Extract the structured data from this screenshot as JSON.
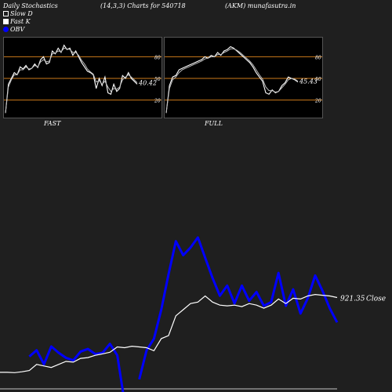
{
  "header": {
    "title": "Daily Stochastics",
    "params": "(14,3,3) Charts for 540718",
    "source": "(AKM) munafasutra.in"
  },
  "legend": [
    {
      "label": "Slow  D",
      "kind": "open-square"
    },
    {
      "label": "Fast  K",
      "kind": "filled-square"
    },
    {
      "label": "OBV",
      "kind": "blue-dot"
    }
  ],
  "colors": {
    "background": "#1f1f1f",
    "panel": "#000000",
    "level_line": "#cc7a1a",
    "obv": "#0000ff",
    "price": "#ffffff"
  },
  "chart_data": [
    {
      "type": "line",
      "title": "FAST",
      "ylim": [
        0,
        100
      ],
      "level_lines": [
        80,
        50,
        20
      ],
      "tick_labels": [
        "80",
        "50",
        "20"
      ],
      "last_value_label": "40.42",
      "series": [
        {
          "name": "Fast K",
          "values": [
            2,
            42,
            50,
            58,
            55,
            66,
            63,
            68,
            62,
            64,
            70,
            65,
            76,
            80,
            70,
            72,
            88,
            84,
            92,
            86,
            96,
            90,
            92,
            82,
            88,
            80,
            72,
            66,
            60,
            58,
            55,
            36,
            50,
            40,
            52,
            30,
            28,
            42,
            32,
            36,
            54,
            50,
            58,
            50,
            46,
            42
          ]
        },
        {
          "name": "Slow D",
          "values": [
            2,
            38,
            48,
            55,
            55,
            62,
            62,
            66,
            63,
            64,
            68,
            66,
            73,
            76,
            73,
            74,
            84,
            85,
            88,
            87,
            92,
            91,
            90,
            86,
            86,
            82,
            75,
            70,
            63,
            59,
            56,
            45,
            47,
            42,
            46,
            38,
            32,
            36,
            35,
            38,
            48,
            52,
            55,
            52,
            48,
            44
          ]
        }
      ]
    },
    {
      "type": "line",
      "title": "FULL",
      "ylim": [
        0,
        100
      ],
      "level_lines": [
        80,
        50,
        20
      ],
      "tick_labels": [
        "80",
        "50",
        "20"
      ],
      "last_value_label": "45.43",
      "series": [
        {
          "name": "Fast K",
          "values": [
            2,
            40,
            52,
            54,
            62,
            64,
            66,
            68,
            70,
            72,
            74,
            76,
            80,
            78,
            82,
            80,
            86,
            82,
            88,
            90,
            94,
            92,
            88,
            84,
            80,
            76,
            72,
            66,
            58,
            52,
            46,
            30,
            28,
            34,
            30,
            32,
            40,
            44,
            52,
            50,
            48,
            45
          ]
        },
        {
          "name": "Slow D",
          "values": [
            2,
            36,
            48,
            52,
            58,
            62,
            64,
            66,
            68,
            70,
            72,
            74,
            77,
            78,
            80,
            80,
            83,
            83,
            86,
            88,
            91,
            91,
            89,
            86,
            82,
            78,
            74,
            69,
            62,
            55,
            49,
            38,
            33,
            33,
            31,
            32,
            37,
            42,
            48,
            50,
            49,
            46
          ]
        }
      ]
    },
    {
      "type": "line",
      "title": "",
      "last_value_label": "921.35",
      "price_label": "Close",
      "series": [
        {
          "name": "Close",
          "values": [
            0.88,
            0.88,
            0.86,
            0.92,
            1.0,
            1.4,
            1.3,
            1.2,
            1.4,
            1.6,
            1.55,
            1.8,
            1.85,
            2.0,
            2.1,
            2.2,
            2.55,
            2.5,
            2.6,
            2.55,
            2.5,
            2.3,
            3.1,
            3.3,
            4.6,
            5.0,
            5.4,
            5.5,
            5.9,
            5.5,
            5.3,
            5.25,
            5.3,
            5.2,
            5.4,
            5.3,
            5.1,
            5.3,
            5.7,
            5.4,
            5.75,
            5.7,
            5.9,
            6.0,
            5.95,
            5.9,
            5.8
          ]
        },
        {
          "name": "OBV",
          "values": [
            null,
            null,
            null,
            null,
            -0.2,
            0.3,
            -0.8,
            0.6,
            0.1,
            -0.3,
            -0.5,
            0.2,
            0.4,
            0.0,
            0.1,
            0.8,
            -0.1,
            -3.8,
            null,
            -2.0,
            0.3,
            1.2,
            3.5,
            6.3,
            8.9,
            7.8,
            8.4,
            9.2,
            7.6,
            6.0,
            4.6,
            5.4,
            4.0,
            5.4,
            4.2,
            4.9,
            3.8,
            4.1,
            6.4,
            3.8,
            5.1,
            3.2,
            4.4,
            6.2,
            5.0,
            3.6,
            2.5
          ]
        }
      ]
    }
  ],
  "panel_labels": {
    "fast": "FAST",
    "full": "FULL"
  }
}
